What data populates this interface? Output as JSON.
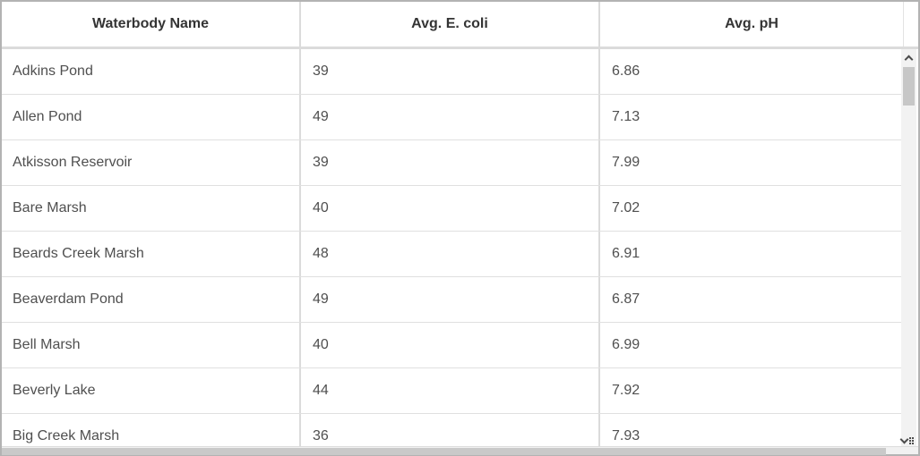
{
  "table": {
    "columns": [
      {
        "label": "Waterbody Name"
      },
      {
        "label": "Avg. E. coli"
      },
      {
        "label": "Avg. pH"
      }
    ],
    "rows": [
      {
        "name": "Adkins Pond",
        "ecoli": "39",
        "ph": "6.86"
      },
      {
        "name": "Allen Pond",
        "ecoli": "49",
        "ph": "7.13"
      },
      {
        "name": "Atkisson Reservoir",
        "ecoli": "39",
        "ph": "7.99"
      },
      {
        "name": "Bare Marsh",
        "ecoli": "40",
        "ph": "7.02"
      },
      {
        "name": "Beards Creek Marsh",
        "ecoli": "48",
        "ph": "6.91"
      },
      {
        "name": "Beaverdam Pond",
        "ecoli": "49",
        "ph": "6.87"
      },
      {
        "name": "Bell Marsh",
        "ecoli": "40",
        "ph": "6.99"
      },
      {
        "name": "Beverly Lake",
        "ecoli": "44",
        "ph": "7.92"
      },
      {
        "name": "Big Creek Marsh",
        "ecoli": "36",
        "ph": "7.93"
      }
    ]
  },
  "scrollbar": {
    "up_icon": "chevron-up-icon",
    "down_icon": "chevron-down-icon",
    "corner_icon": "resize-grip-icon"
  },
  "colors": {
    "header_text": "#343434",
    "body_text": "#4f4f4f",
    "grid_line": "#dbdbdb",
    "row_line": "#e0e0e0",
    "outer_border": "#b3b3b3",
    "scrollbar_track": "#f2f2f2",
    "scrollbar_thumb": "#c7c7c7"
  }
}
